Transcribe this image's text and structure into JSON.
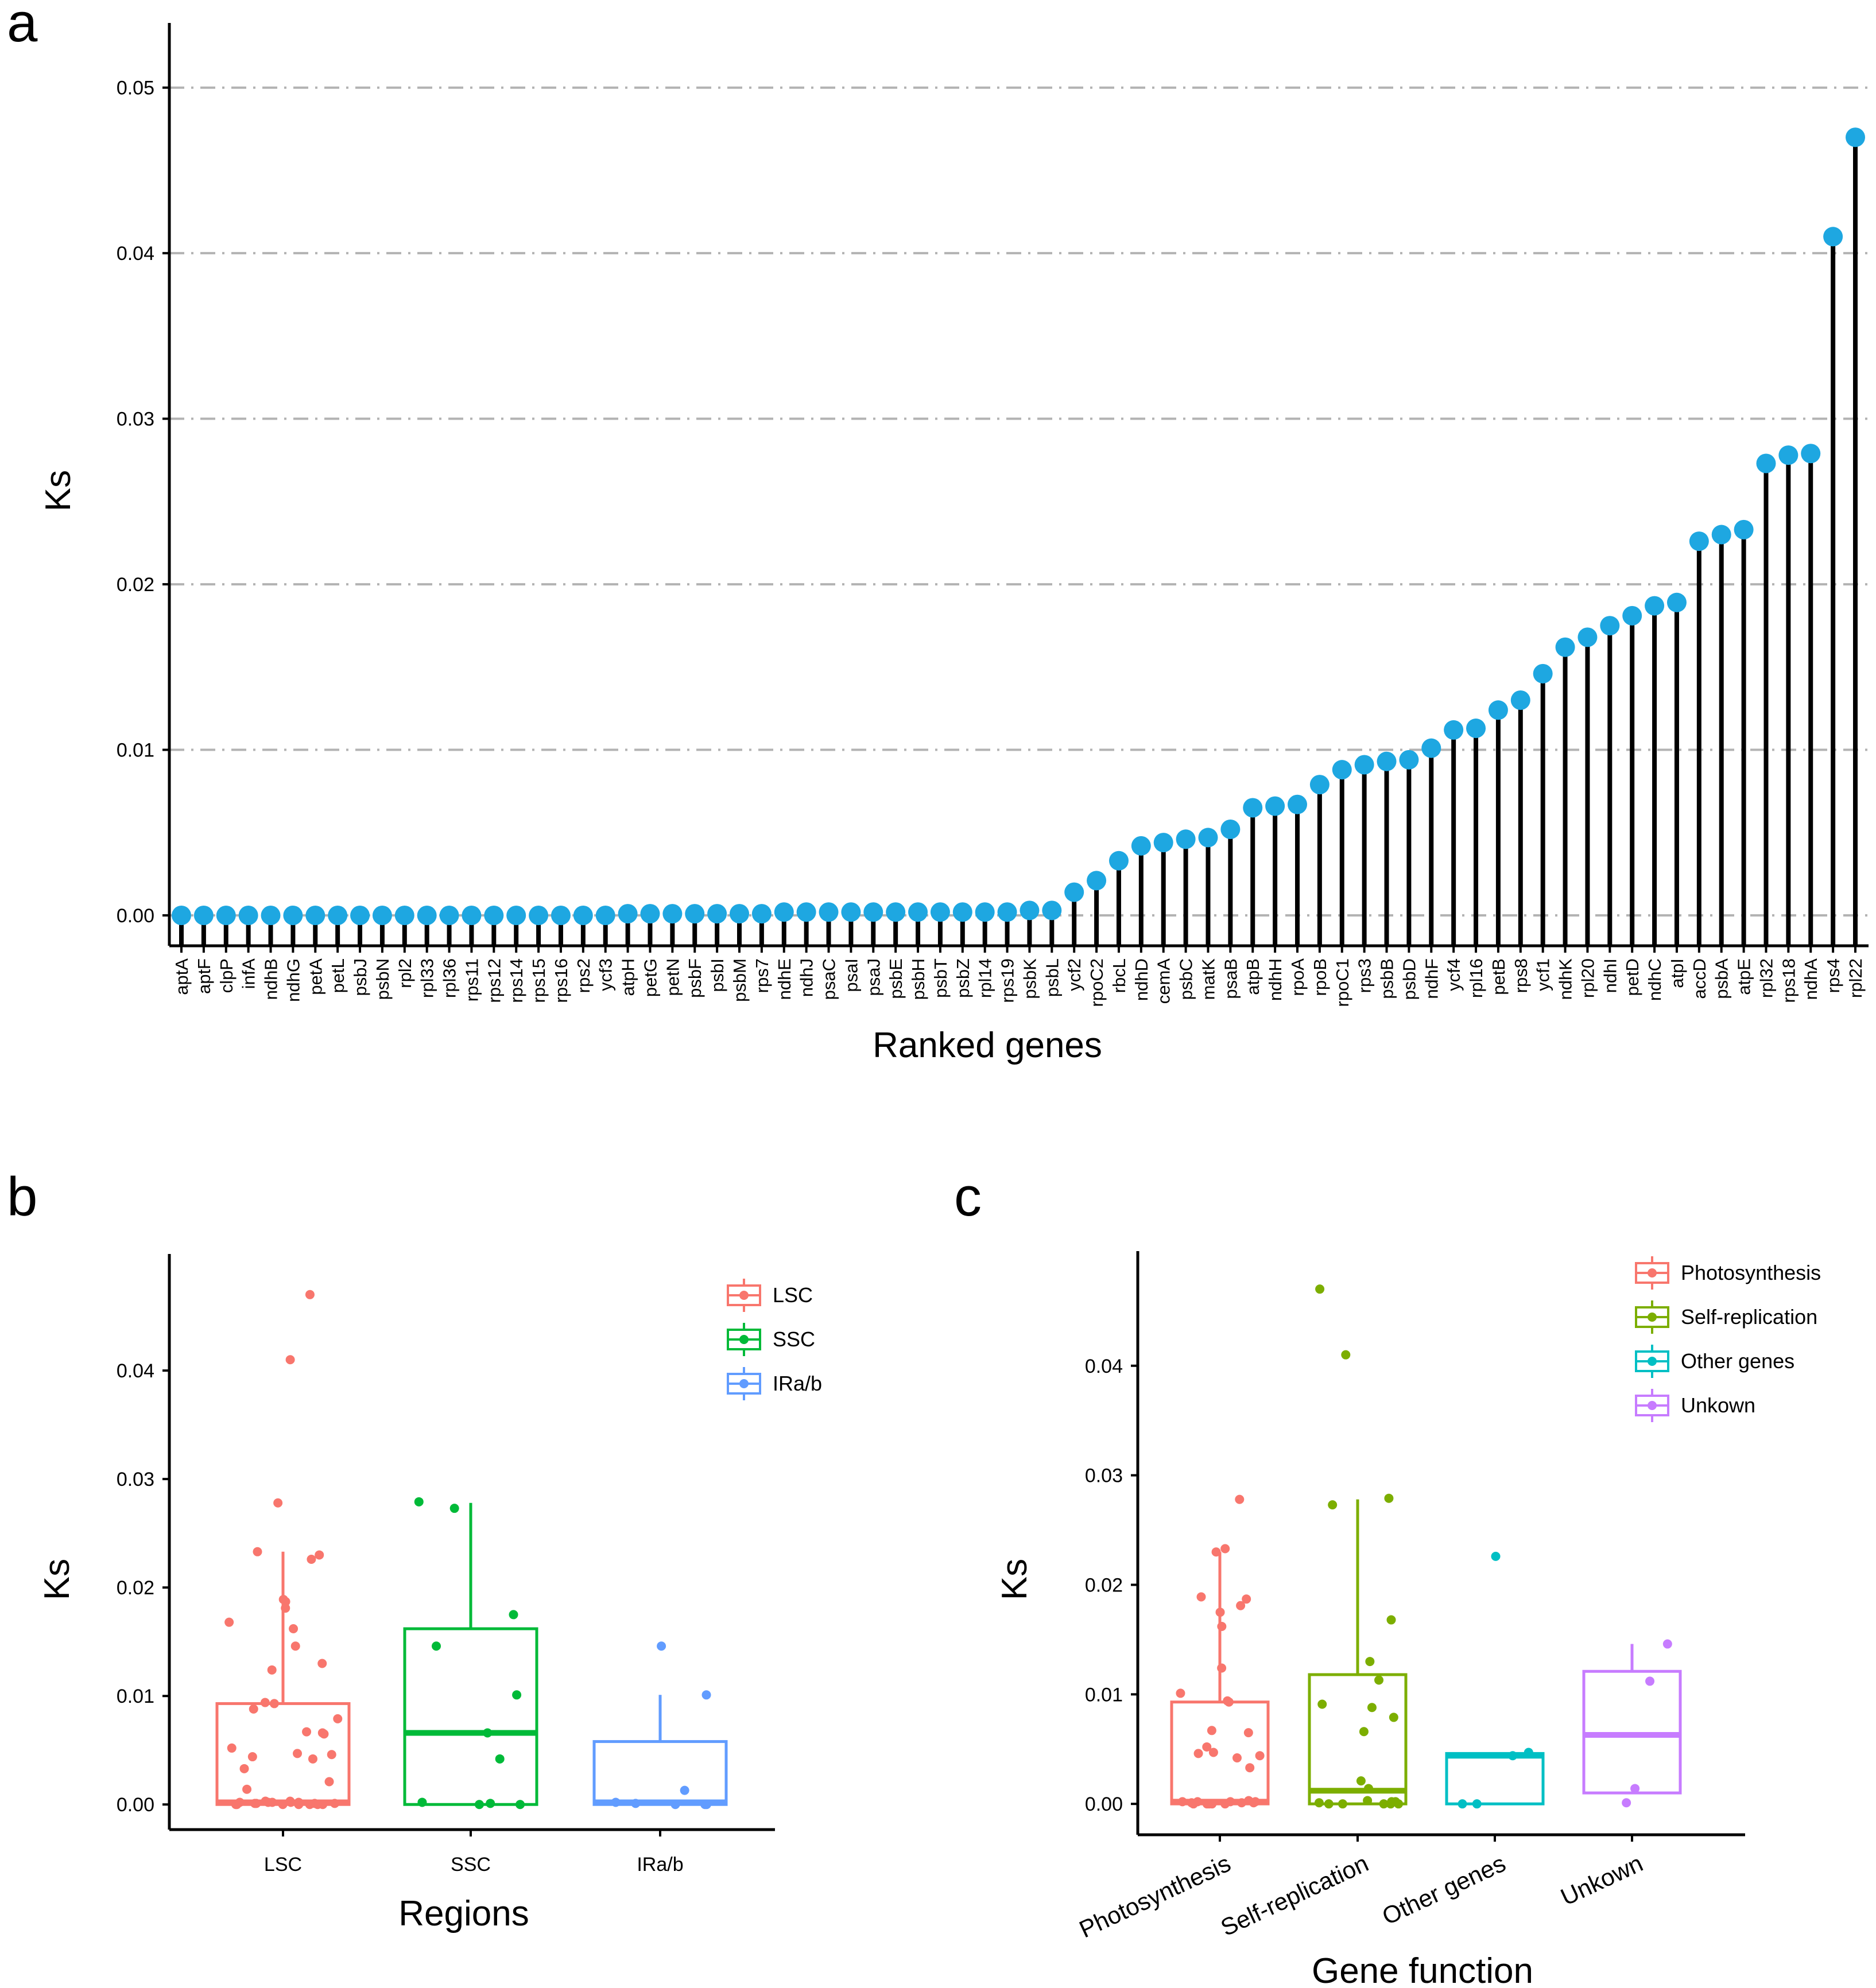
{
  "panel_letters": [
    "a",
    "b",
    "c"
  ],
  "chart_data": [
    {
      "type": "lollipop",
      "panel": "a",
      "xlabel": "Ranked genes",
      "ylabel": "Ks",
      "ylim": [
        0,
        0.052
      ],
      "yticks": [
        0,
        0.01,
        0.02,
        0.03,
        0.04,
        0.05
      ],
      "ytick_labels": [
        "0.00",
        "0.01",
        "0.02",
        "0.03",
        "0.04",
        "0.05"
      ],
      "grid": "horizontal dash-dot",
      "point_color": "#1ea7e1",
      "categories": [
        "aptA",
        "aptF",
        "clpP",
        "infA",
        "ndhB",
        "ndhG",
        "petA",
        "petL",
        "psbJ",
        "psbN",
        "rpl2",
        "rpl33",
        "rpl36",
        "rps11",
        "rps12",
        "rps14",
        "rps15",
        "rps16",
        "rps2",
        "ycf3",
        "atpH",
        "petG",
        "petN",
        "psbF",
        "psbI",
        "psbM",
        "rps7",
        "ndhE",
        "ndhJ",
        "psaC",
        "psaI",
        "psaJ",
        "psbE",
        "psbH",
        "psbT",
        "psbZ",
        "rpl14",
        "rps19",
        "psbK",
        "psbL",
        "ycf2",
        "rpoC2",
        "rbcL",
        "ndhD",
        "cemA",
        "psbC",
        "matK",
        "psaB",
        "atpB",
        "ndhH",
        "rpoA",
        "rpoB",
        "rpoC1",
        "rps3",
        "psbB",
        "psbD",
        "ndhF",
        "ycf4",
        "rpl16",
        "petB",
        "rps8",
        "ycf1",
        "ndhK",
        "rpl20",
        "ndhI",
        "petD",
        "ndhC",
        "atpI",
        "accD",
        "psbA",
        "atpE",
        "rpl32",
        "rps18",
        "ndhA",
        "rps4",
        "rpl22"
      ],
      "values": [
        0,
        0,
        0,
        0,
        0,
        0,
        0,
        0,
        0,
        0,
        0,
        0,
        0,
        0,
        0,
        0,
        0,
        0,
        0,
        0,
        0.0001,
        0.0001,
        0.0001,
        0.0001,
        0.0001,
        0.0001,
        0.0001,
        0.0002,
        0.0002,
        0.0002,
        0.0002,
        0.0002,
        0.0002,
        0.0002,
        0.0002,
        0.0002,
        0.0002,
        0.0002,
        0.0003,
        0.0003,
        0.0014,
        0.0021,
        0.0033,
        0.0042,
        0.0044,
        0.0046,
        0.0047,
        0.0052,
        0.0065,
        0.0066,
        0.0067,
        0.0079,
        0.0088,
        0.0091,
        0.0093,
        0.0094,
        0.0101,
        0.0112,
        0.0113,
        0.0124,
        0.013,
        0.0146,
        0.0162,
        0.0168,
        0.0175,
        0.0181,
        0.0187,
        0.0189,
        0.0226,
        0.023,
        0.0233,
        0.0273,
        0.0278,
        0.0279,
        0.041,
        0.047
      ]
    },
    {
      "type": "boxplot",
      "panel": "b",
      "xlabel": "Regions",
      "ylabel": "Ks",
      "ylim": [
        -0.0002,
        0.049
      ],
      "yticks": [
        0,
        0.01,
        0.02,
        0.03,
        0.04
      ],
      "ytick_labels": [
        "0.00",
        "0.01",
        "0.02",
        "0.03",
        "0.04"
      ],
      "legend_position": "top-right",
      "categories": [
        "LSC",
        "SSC",
        "IRa/b"
      ],
      "series": [
        {
          "name": "LSC",
          "color": "#f8766d",
          "box": {
            "q1": 0.0,
            "median": 0.0002,
            "q3": 0.0093,
            "whisker_low": 0.0,
            "whisker_high": 0.0233
          },
          "points": [
            0.047,
            0.041,
            0.0278,
            0.0233,
            0.023,
            0.0226,
            0.0189,
            0.0187,
            0.0181,
            0.0168,
            0.0162,
            0.0146,
            0.0124,
            0.013,
            0.0094,
            0.0093,
            0.0088,
            0.0079,
            0.0067,
            0.0065,
            0.0066,
            0.0052,
            0.0047,
            0.0046,
            0.0044,
            0.0042,
            0.0033,
            0.0021,
            0.0014,
            0.0003,
            0.0003,
            0.0002,
            0.0002,
            0.0002,
            0.0002,
            0.0002,
            0.0001,
            0.0001,
            0.0001,
            0.0001,
            0,
            0,
            0,
            0,
            0,
            0,
            0
          ]
        },
        {
          "name": "SSC",
          "color": "#00ba38",
          "box": {
            "q1": 0.0,
            "median": 0.0066,
            "q3": 0.0162,
            "whisker_low": 0.0,
            "whisker_high": 0.0278
          },
          "points": [
            0.0279,
            0.0273,
            0.0175,
            0.0146,
            0.0101,
            0.0066,
            0.0042,
            0.0002,
            0.0001,
            0,
            0
          ]
        },
        {
          "name": "IRa/b",
          "color": "#619cff",
          "box": {
            "q1": 0.0,
            "median": 0.0002,
            "q3": 0.0058,
            "whisker_low": 0.0,
            "whisker_high": 0.0101
          },
          "points": [
            0.0146,
            0.0101,
            0.0013,
            0.0002,
            0.0001,
            0,
            0,
            0
          ]
        }
      ]
    },
    {
      "type": "boxplot",
      "panel": "c",
      "xlabel": "Gene function",
      "ylabel": "Ks",
      "ylim": [
        -0.0002,
        0.049
      ],
      "yticks": [
        0,
        0.01,
        0.02,
        0.03,
        0.04
      ],
      "ytick_labels": [
        "0.00",
        "0.01",
        "0.02",
        "0.03",
        "0.04"
      ],
      "legend_position": "top-right",
      "categories": [
        "Photosynthesis",
        "Self-replication",
        "Other genes",
        "Unkown"
      ],
      "series": [
        {
          "name": "Photosynthesis",
          "color": "#f8766d",
          "box": {
            "q1": 0.0,
            "median": 0.0002,
            "q3": 0.0093,
            "whisker_low": 0.0,
            "whisker_high": 0.023
          },
          "points": [
            0.0278,
            0.0233,
            0.023,
            0.0189,
            0.0187,
            0.0181,
            0.0175,
            0.0162,
            0.0124,
            0.0101,
            0.0094,
            0.0093,
            0.0067,
            0.0065,
            0.0052,
            0.0047,
            0.0046,
            0.0044,
            0.0042,
            0.0033,
            0.0003,
            0.0002,
            0.0002,
            0.0002,
            0.0002,
            0.0001,
            0.0001,
            0.0001,
            0,
            0,
            0,
            0,
            0
          ]
        },
        {
          "name": "Self-replication",
          "color": "#7cae00",
          "box": {
            "q1": 0.0,
            "median": 0.0012,
            "q3": 0.0118,
            "whisker_low": 0.0,
            "whisker_high": 0.0278
          },
          "points": [
            0.047,
            0.041,
            0.0279,
            0.0273,
            0.0168,
            0.013,
            0.0113,
            0.0091,
            0.0088,
            0.0079,
            0.0066,
            0.0021,
            0.0014,
            0.0003,
            0.0002,
            0.0002,
            0.0001,
            0,
            0,
            0,
            0,
            0
          ]
        },
        {
          "name": "Other genes",
          "color": "#00bfc4",
          "box": {
            "q1": 0.0,
            "median": 0.0044,
            "q3": 0.0046,
            "whisker_low": 0.0,
            "whisker_high": 0.0047
          },
          "points": [
            0.0226,
            0.0047,
            0.0044,
            0.0,
            0.0
          ]
        },
        {
          "name": "Unkown",
          "color": "#c77cff",
          "box": {
            "q1": 0.001,
            "median": 0.0063,
            "q3": 0.0121,
            "whisker_low": 0.0,
            "whisker_high": 0.0146
          },
          "points": [
            0.0146,
            0.0112,
            0.0014,
            0.0001
          ]
        }
      ]
    }
  ]
}
